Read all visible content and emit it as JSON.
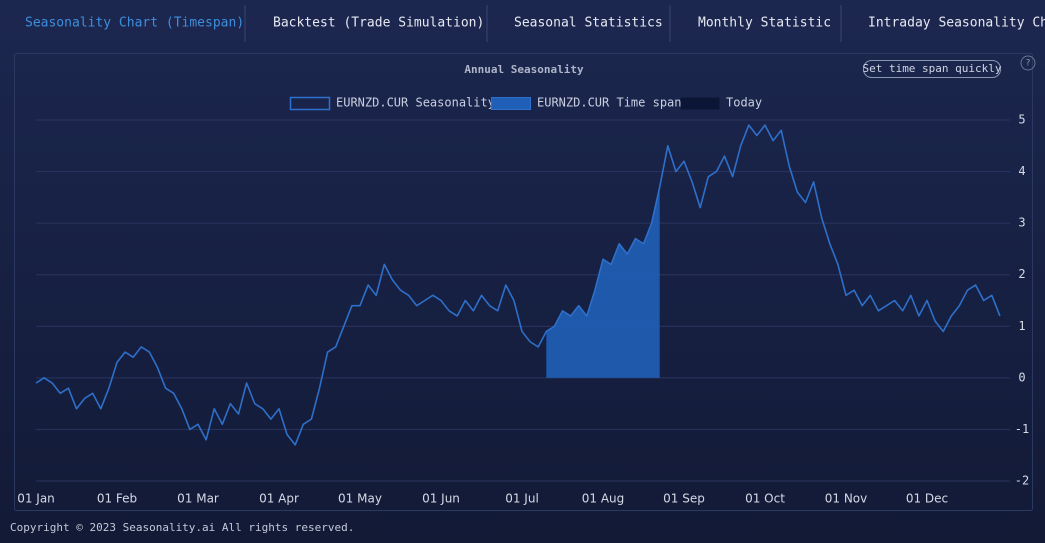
{
  "tabs": [
    "Seasonality Chart (Timespan)",
    "Backtest (Trade Simulation)",
    "Seasonal Statistics",
    "Monthly Statistic",
    "Intraday Seasonality Chart"
  ],
  "button": "Set time span quickly",
  "help": "?",
  "footer": "Copyright © 2023 Seasonality.ai All rights reserved.",
  "chart_data": {
    "type": "line",
    "title": "Annual Seasonality",
    "categories": [
      "01 Jan",
      null,
      null,
      null,
      null,
      null,
      null,
      null,
      null,
      null,
      "01 Feb",
      null,
      null,
      null,
      null,
      null,
      null,
      null,
      null,
      null,
      "01 Mar",
      null,
      null,
      null,
      null,
      null,
      null,
      null,
      null,
      null,
      "01 Apr",
      null,
      null,
      null,
      null,
      null,
      null,
      null,
      null,
      null,
      "01 May",
      null,
      null,
      null,
      null,
      null,
      null,
      null,
      null,
      null,
      "01 Jun",
      null,
      null,
      null,
      null,
      null,
      null,
      null,
      null,
      null,
      "01 Jul",
      null,
      null,
      null,
      null,
      null,
      null,
      null,
      null,
      null,
      "01 Aug",
      null,
      null,
      null,
      null,
      null,
      null,
      null,
      null,
      null,
      "01 Sep",
      null,
      null,
      null,
      null,
      null,
      null,
      null,
      null,
      null,
      "01 Oct",
      null,
      null,
      null,
      null,
      null,
      null,
      null,
      null,
      null,
      "01 Nov",
      null,
      null,
      null,
      null,
      null,
      null,
      null,
      null,
      null,
      "01 Dec",
      null,
      null,
      null,
      null,
      null,
      null,
      null,
      null,
      null
    ],
    "series": [
      {
        "name": "EURNZD.CUR Seasonality",
        "color": "#2e6fc9",
        "style": "line",
        "values": [
          -0.1,
          0.0,
          -0.1,
          -0.3,
          -0.2,
          -0.6,
          -0.4,
          -0.3,
          -0.6,
          -0.2,
          0.3,
          0.5,
          0.4,
          0.6,
          0.5,
          0.2,
          -0.2,
          -0.3,
          -0.6,
          -1.0,
          -0.9,
          -1.2,
          -0.6,
          -0.9,
          -0.5,
          -0.7,
          -0.1,
          -0.5,
          -0.6,
          -0.8,
          -0.6,
          -1.1,
          -1.3,
          -0.9,
          -0.8,
          -0.2,
          0.5,
          0.6,
          1.0,
          1.4,
          1.4,
          1.8,
          1.6,
          2.2,
          1.9,
          1.7,
          1.6,
          1.4,
          1.5,
          1.6,
          1.5,
          1.3,
          1.2,
          1.5,
          1.3,
          1.6,
          1.4,
          1.3,
          1.8,
          1.5,
          0.9,
          0.7,
          0.6,
          0.9,
          1.0,
          1.3,
          1.2,
          1.4,
          1.2,
          1.7,
          2.3,
          2.2,
          2.6,
          2.4,
          2.7,
          2.6,
          3.0,
          3.7,
          4.5,
          4.0,
          4.2,
          3.8,
          3.3,
          3.9,
          4.0,
          4.3,
          3.9,
          4.5,
          4.9,
          4.7,
          4.9,
          4.6,
          4.8,
          4.1,
          3.6,
          3.4,
          3.8,
          3.1,
          2.6,
          2.2,
          1.6,
          1.7,
          1.4,
          1.6,
          1.3,
          1.4,
          1.5,
          1.3,
          1.6,
          1.2,
          1.5,
          1.1,
          0.9,
          1.2,
          1.4,
          1.7,
          1.8,
          1.5,
          1.6,
          1.2
        ]
      },
      {
        "name": "EURNZD.CUR Time span",
        "color": "#1f5fb8",
        "style": "area",
        "values": [
          null,
          null,
          null,
          null,
          null,
          null,
          null,
          null,
          null,
          null,
          null,
          null,
          null,
          null,
          null,
          null,
          null,
          null,
          null,
          null,
          null,
          null,
          null,
          null,
          null,
          null,
          null,
          null,
          null,
          null,
          null,
          null,
          null,
          null,
          null,
          null,
          null,
          null,
          null,
          null,
          null,
          null,
          null,
          null,
          null,
          null,
          null,
          null,
          null,
          null,
          null,
          null,
          null,
          null,
          null,
          null,
          null,
          null,
          null,
          null,
          null,
          null,
          null,
          0.9,
          1.0,
          1.3,
          1.2,
          1.4,
          1.2,
          1.7,
          2.3,
          2.2,
          2.6,
          2.4,
          2.7,
          2.6,
          3.0,
          3.7,
          null,
          null,
          null,
          null,
          null,
          null,
          null,
          null,
          null,
          null,
          null,
          null,
          null,
          null,
          null,
          null,
          null,
          null,
          null,
          null,
          null,
          null,
          null,
          null,
          null,
          null,
          null,
          null,
          null,
          null,
          null,
          null,
          null,
          null,
          null,
          null,
          null,
          null,
          null,
          null,
          null,
          null
        ]
      },
      {
        "name": "Today",
        "color": "#0b1636",
        "style": "marker",
        "values": [
          null,
          null,
          null,
          null,
          null,
          null,
          null,
          null,
          null,
          null,
          null,
          null,
          null,
          null,
          null,
          null,
          null,
          null,
          null,
          null,
          null,
          null,
          null,
          null,
          null,
          null,
          null,
          null,
          null,
          null,
          null,
          null,
          null,
          null,
          null,
          null,
          null,
          null,
          null,
          null,
          null,
          null,
          null,
          null,
          null,
          null,
          null,
          null,
          null,
          null,
          null,
          null,
          null,
          null,
          null,
          null,
          null,
          null,
          null,
          null,
          null,
          null,
          null,
          null,
          null,
          null,
          null,
          null,
          null,
          null,
          null,
          null,
          null,
          null,
          null,
          null,
          null,
          null,
          null,
          null,
          null,
          null,
          null,
          null,
          null,
          null,
          null,
          null,
          null,
          null,
          null,
          null,
          null,
          null,
          null,
          null,
          null,
          null,
          null,
          null,
          null,
          null,
          null,
          null,
          null,
          null,
          null,
          null,
          null,
          null,
          null,
          null,
          null,
          null,
          null,
          null,
          null,
          null,
          null,
          null
        ]
      }
    ],
    "ylim": [
      -2,
      5
    ],
    "yticks": [
      -2,
      -1,
      0,
      1,
      2,
      3,
      4,
      5
    ],
    "grid": true
  }
}
